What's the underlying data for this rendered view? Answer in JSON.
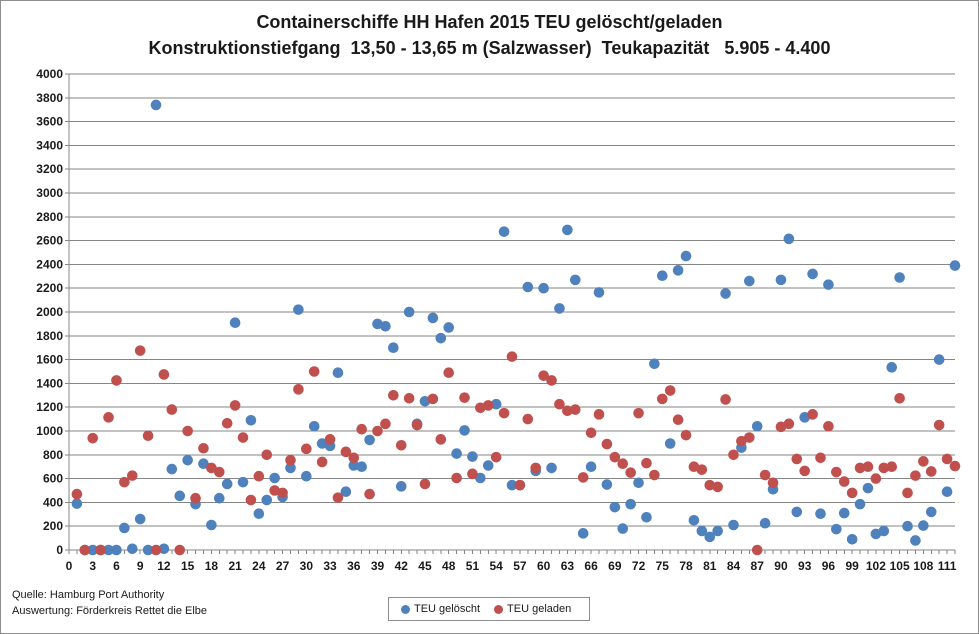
{
  "chart_data": {
    "type": "scatter",
    "title": "Containerschiffe HH Hafen 2015 TEU gelöscht/geladen",
    "subtitle": "Konstruktionstiefgang  13,50 - 13,65 m (Salzwasser)  Teukapazität   5.905 - 4.400",
    "xlabel": "",
    "ylabel": "",
    "xlim": [
      0,
      112
    ],
    "ylim": [
      0,
      4000
    ],
    "yticks": [
      0,
      200,
      400,
      600,
      800,
      1000,
      1200,
      1400,
      1600,
      1800,
      2000,
      2200,
      2400,
      2600,
      2800,
      3000,
      3200,
      3400,
      3600,
      3800,
      4000
    ],
    "xticks": [
      0,
      3,
      6,
      9,
      12,
      15,
      18,
      21,
      24,
      27,
      30,
      33,
      36,
      39,
      42,
      45,
      48,
      51,
      54,
      57,
      60,
      63,
      66,
      69,
      72,
      75,
      78,
      81,
      84,
      87,
      90,
      93,
      96,
      99,
      102,
      105,
      108,
      111
    ],
    "grid": "horizontal",
    "legend_position": "bottom",
    "series": [
      {
        "name": "TEU gelöscht",
        "color": "#4f81bd",
        "points": [
          [
            1,
            390
          ],
          [
            2,
            0
          ],
          [
            3,
            0
          ],
          [
            4,
            0
          ],
          [
            5,
            0
          ],
          [
            6,
            0
          ],
          [
            7,
            185
          ],
          [
            8,
            10
          ],
          [
            9,
            260
          ],
          [
            10,
            0
          ],
          [
            11,
            3740
          ],
          [
            12,
            10
          ],
          [
            13,
            680
          ],
          [
            14,
            455
          ],
          [
            15,
            755
          ],
          [
            16,
            385
          ],
          [
            17,
            725
          ],
          [
            18,
            210
          ],
          [
            19,
            435
          ],
          [
            20,
            555
          ],
          [
            21,
            1910
          ],
          [
            22,
            570
          ],
          [
            23,
            1090
          ],
          [
            24,
            305
          ],
          [
            25,
            420
          ],
          [
            26,
            605
          ],
          [
            27,
            445
          ],
          [
            28,
            690
          ],
          [
            29,
            2020
          ],
          [
            30,
            620
          ],
          [
            31,
            1040
          ],
          [
            32,
            895
          ],
          [
            33,
            875
          ],
          [
            34,
            1490
          ],
          [
            35,
            490
          ],
          [
            36,
            710
          ],
          [
            37,
            700
          ],
          [
            38,
            925
          ],
          [
            39,
            1900
          ],
          [
            40,
            1880
          ],
          [
            41,
            1700
          ],
          [
            42,
            535
          ],
          [
            43,
            2000
          ],
          [
            44,
            1060
          ],
          [
            45,
            1250
          ],
          [
            46,
            1950
          ],
          [
            47,
            1780
          ],
          [
            48,
            1870
          ],
          [
            49,
            810
          ],
          [
            50,
            1005
          ],
          [
            51,
            785
          ],
          [
            52,
            605
          ],
          [
            53,
            710
          ],
          [
            54,
            1225
          ],
          [
            55,
            2675
          ],
          [
            56,
            545
          ],
          [
            57,
            545
          ],
          [
            58,
            2210
          ],
          [
            59,
            665
          ],
          [
            60,
            2200
          ],
          [
            61,
            690
          ],
          [
            62,
            2030
          ],
          [
            63,
            2690
          ],
          [
            64,
            2270
          ],
          [
            65,
            140
          ],
          [
            66,
            700
          ],
          [
            67,
            2165
          ],
          [
            68,
            550
          ],
          [
            69,
            360
          ],
          [
            70,
            180
          ],
          [
            71,
            385
          ],
          [
            72,
            565
          ],
          [
            73,
            275
          ],
          [
            74,
            1565
          ],
          [
            75,
            2305
          ],
          [
            76,
            895
          ],
          [
            77,
            2350
          ],
          [
            78,
            2470
          ],
          [
            79,
            250
          ],
          [
            80,
            160
          ],
          [
            81,
            110
          ],
          [
            82,
            160
          ],
          [
            83,
            2155
          ],
          [
            84,
            210
          ],
          [
            85,
            860
          ],
          [
            86,
            2260
          ],
          [
            87,
            1040
          ],
          [
            88,
            225
          ],
          [
            89,
            510
          ],
          [
            90,
            2270
          ],
          [
            91,
            2615
          ],
          [
            92,
            320
          ],
          [
            93,
            1115
          ],
          [
            94,
            2320
          ],
          [
            95,
            305
          ],
          [
            96,
            2230
          ],
          [
            97,
            175
          ],
          [
            98,
            310
          ],
          [
            99,
            90
          ],
          [
            100,
            385
          ],
          [
            101,
            520
          ],
          [
            102,
            135
          ],
          [
            103,
            160
          ],
          [
            104,
            1535
          ],
          [
            105,
            2290
          ],
          [
            106,
            200
          ],
          [
            107,
            80
          ],
          [
            108,
            205
          ],
          [
            109,
            320
          ],
          [
            110,
            1600
          ],
          [
            111,
            490
          ],
          [
            112,
            2390
          ]
        ]
      },
      {
        "name": "TEU geladen",
        "color": "#c0504d",
        "points": [
          [
            1,
            470
          ],
          [
            2,
            0
          ],
          [
            3,
            940
          ],
          [
            4,
            0
          ],
          [
            5,
            1115
          ],
          [
            6,
            1425
          ],
          [
            7,
            570
          ],
          [
            8,
            625
          ],
          [
            9,
            1675
          ],
          [
            10,
            960
          ],
          [
            11,
            0
          ],
          [
            12,
            1475
          ],
          [
            13,
            1180
          ],
          [
            14,
            0
          ],
          [
            15,
            1000
          ],
          [
            16,
            435
          ],
          [
            17,
            855
          ],
          [
            18,
            690
          ],
          [
            19,
            655
          ],
          [
            20,
            1065
          ],
          [
            21,
            1215
          ],
          [
            22,
            945
          ],
          [
            23,
            420
          ],
          [
            24,
            620
          ],
          [
            25,
            800
          ],
          [
            26,
            500
          ],
          [
            27,
            480
          ],
          [
            28,
            755
          ],
          [
            29,
            1350
          ],
          [
            30,
            850
          ],
          [
            31,
            1500
          ],
          [
            32,
            740
          ],
          [
            33,
            930
          ],
          [
            34,
            440
          ],
          [
            35,
            825
          ],
          [
            36,
            775
          ],
          [
            37,
            1015
          ],
          [
            38,
            470
          ],
          [
            39,
            1000
          ],
          [
            40,
            1060
          ],
          [
            41,
            1300
          ],
          [
            42,
            880
          ],
          [
            43,
            1275
          ],
          [
            44,
            1050
          ],
          [
            45,
            555
          ],
          [
            46,
            1270
          ],
          [
            47,
            930
          ],
          [
            48,
            1490
          ],
          [
            49,
            605
          ],
          [
            50,
            1280
          ],
          [
            51,
            640
          ],
          [
            52,
            1195
          ],
          [
            53,
            1215
          ],
          [
            54,
            780
          ],
          [
            55,
            1150
          ],
          [
            56,
            1625
          ],
          [
            57,
            545
          ],
          [
            58,
            1100
          ],
          [
            59,
            690
          ],
          [
            60,
            1465
          ],
          [
            61,
            1425
          ],
          [
            62,
            1225
          ],
          [
            63,
            1170
          ],
          [
            64,
            1180
          ],
          [
            65,
            610
          ],
          [
            66,
            985
          ],
          [
            67,
            1140
          ],
          [
            68,
            890
          ],
          [
            69,
            780
          ],
          [
            70,
            725
          ],
          [
            71,
            650
          ],
          [
            72,
            1150
          ],
          [
            73,
            730
          ],
          [
            74,
            630
          ],
          [
            75,
            1270
          ],
          [
            76,
            1340
          ],
          [
            77,
            1095
          ],
          [
            78,
            965
          ],
          [
            79,
            700
          ],
          [
            80,
            675
          ],
          [
            81,
            545
          ],
          [
            82,
            530
          ],
          [
            83,
            1265
          ],
          [
            84,
            800
          ],
          [
            85,
            915
          ],
          [
            86,
            945
          ],
          [
            87,
            0
          ],
          [
            88,
            630
          ],
          [
            89,
            565
          ],
          [
            90,
            1035
          ],
          [
            91,
            1060
          ],
          [
            92,
            765
          ],
          [
            93,
            665
          ],
          [
            94,
            1140
          ],
          [
            95,
            775
          ],
          [
            96,
            1040
          ],
          [
            97,
            655
          ],
          [
            98,
            575
          ],
          [
            99,
            480
          ],
          [
            100,
            690
          ],
          [
            101,
            700
          ],
          [
            102,
            600
          ],
          [
            103,
            690
          ],
          [
            104,
            700
          ],
          [
            105,
            1275
          ],
          [
            106,
            480
          ],
          [
            107,
            625
          ],
          [
            108,
            745
          ],
          [
            109,
            660
          ],
          [
            110,
            1050
          ],
          [
            111,
            765
          ],
          [
            112,
            705
          ]
        ]
      }
    ]
  },
  "notes": {
    "source": "Quelle: Hamburg Port Authority",
    "analysis": "Auswertung: Förderkreis Rettet die Elbe"
  }
}
